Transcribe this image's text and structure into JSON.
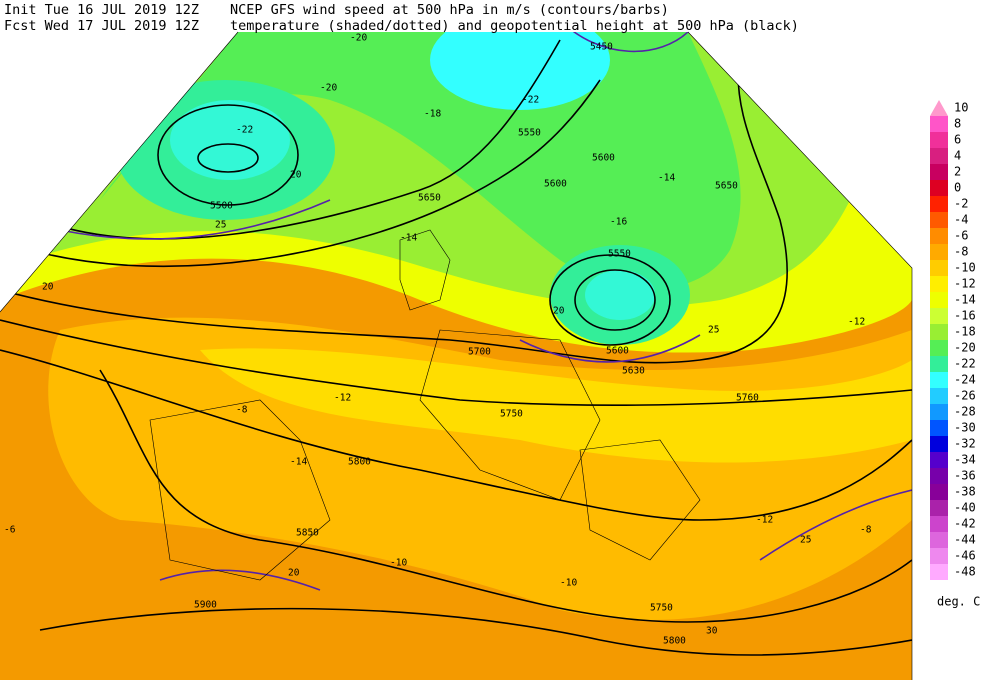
{
  "header": {
    "line1_left": "Init  Tue 16 JUL 2019 12Z",
    "line1_right": "NCEP GFS wind speed at 500 hPa in m/s (contours/barbs)",
    "line2_left": "Fcst Wed 17 JUL 2019 12Z",
    "line2_right": "temperature (shaded/dotted) and geopotential height at 500 hPa (black)"
  },
  "colorbar": {
    "unit": "deg. C",
    "levels": [
      10,
      8,
      6,
      4,
      2,
      0,
      -2,
      -4,
      -6,
      -8,
      -10,
      -12,
      -14,
      -16,
      -18,
      -20,
      -22,
      -24,
      -26,
      -28,
      -30,
      -32,
      -34,
      -36,
      -38,
      -40,
      -42,
      -44,
      -46,
      -48
    ],
    "colors": [
      "#ff99cc",
      "#ff55c8",
      "#f0309a",
      "#d81f80",
      "#c80060",
      "#dd0022",
      "#ff2200",
      "#ff5a00",
      "#ff8c00",
      "#ffaa00",
      "#ffcc00",
      "#ffee00",
      "#eeff00",
      "#ccff33",
      "#99ee33",
      "#55ee55",
      "#33ee99",
      "#33ffff",
      "#22ccff",
      "#1199ff",
      "#0055ff",
      "#0000dd",
      "#5500cc",
      "#7700aa",
      "#880099",
      "#aa22aa",
      "#cc44cc",
      "#dd66dd",
      "#ee88ee",
      "#ffaaff"
    ]
  },
  "map_labels": [
    "5450",
    "5500",
    "5550",
    "5550",
    "5600",
    "5600",
    "5650",
    "5650",
    "5600",
    "5630",
    "5700",
    "5750",
    "5760",
    "5800",
    "5850",
    "5900",
    "5750",
    "5800",
    "-20",
    "-22",
    "-20",
    "-18",
    "-22",
    "-16",
    "-14",
    "-12",
    "-10",
    "-8",
    "-6",
    "-12",
    "-14",
    "-10",
    "-12",
    "-14",
    "-8",
    "20",
    "25",
    "20",
    "20",
    "25",
    "20",
    "30",
    "25"
  ]
}
